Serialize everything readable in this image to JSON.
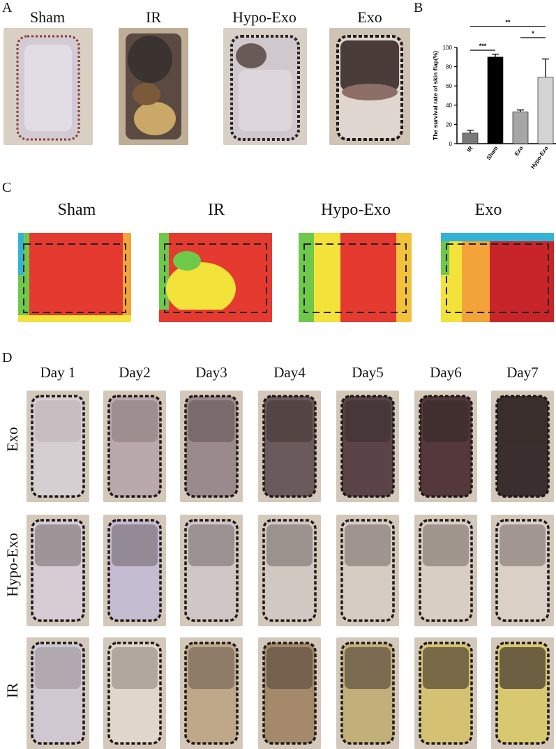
{
  "panel_letters": {
    "a": "A",
    "b": "B",
    "c": "C",
    "d": "D"
  },
  "panel_a": {
    "headers": [
      "Sham",
      "IR",
      "Hypo-Exo",
      "Exo"
    ],
    "photos": [
      {
        "tissue": "pale",
        "label": "Sham"
      },
      {
        "tissue": "necrotic",
        "label": "IR"
      },
      {
        "tissue": "mixed",
        "label": "Hypo-Exo"
      },
      {
        "tissue": "dark-top",
        "label": "Exo"
      }
    ]
  },
  "panel_c": {
    "headers": [
      "Sham",
      "IR",
      "Hypo-Exo",
      "Exo"
    ],
    "maps": [
      {
        "pattern": "mostly-red",
        "label": "Sham"
      },
      {
        "pattern": "yellow-center",
        "label": "IR"
      },
      {
        "pattern": "yellow-left",
        "label": "Hypo-Exo"
      },
      {
        "pattern": "striated-red",
        "label": "Exo"
      }
    ],
    "colors": {
      "hot": "#e53a2f",
      "warm": "#f2e23a",
      "mid": "#6ec94b",
      "cool": "#33b3d6"
    }
  },
  "panel_d": {
    "days": [
      "Day 1",
      "Day2",
      "Day3",
      "Day4",
      "Day5",
      "Day6",
      "Day7"
    ],
    "rows": [
      "Exo",
      "Hypo-Exo",
      "IR"
    ]
  },
  "chart_data": {
    "type": "bar",
    "ylabel": "The survival rate of skin flap(%)",
    "categories": [
      "IR",
      "Sham",
      "Exo",
      "Hypo-Exo"
    ],
    "values": [
      11,
      90,
      33,
      69
    ],
    "errors": [
      3,
      3,
      2,
      19
    ],
    "colors": [
      "#7a7a7a",
      "#000000",
      "#a6a6a6",
      "#d4d4d4"
    ],
    "yticks": [
      0,
      20,
      40,
      60,
      80,
      100
    ],
    "ylim": [
      0,
      100
    ],
    "significance": [
      {
        "from": "IR",
        "to": "Sham",
        "label": "***"
      },
      {
        "from": "IR",
        "to": "Hypo-Exo",
        "label": "**"
      },
      {
        "from": "Exo",
        "to": "Hypo-Exo",
        "label": "*"
      }
    ]
  }
}
